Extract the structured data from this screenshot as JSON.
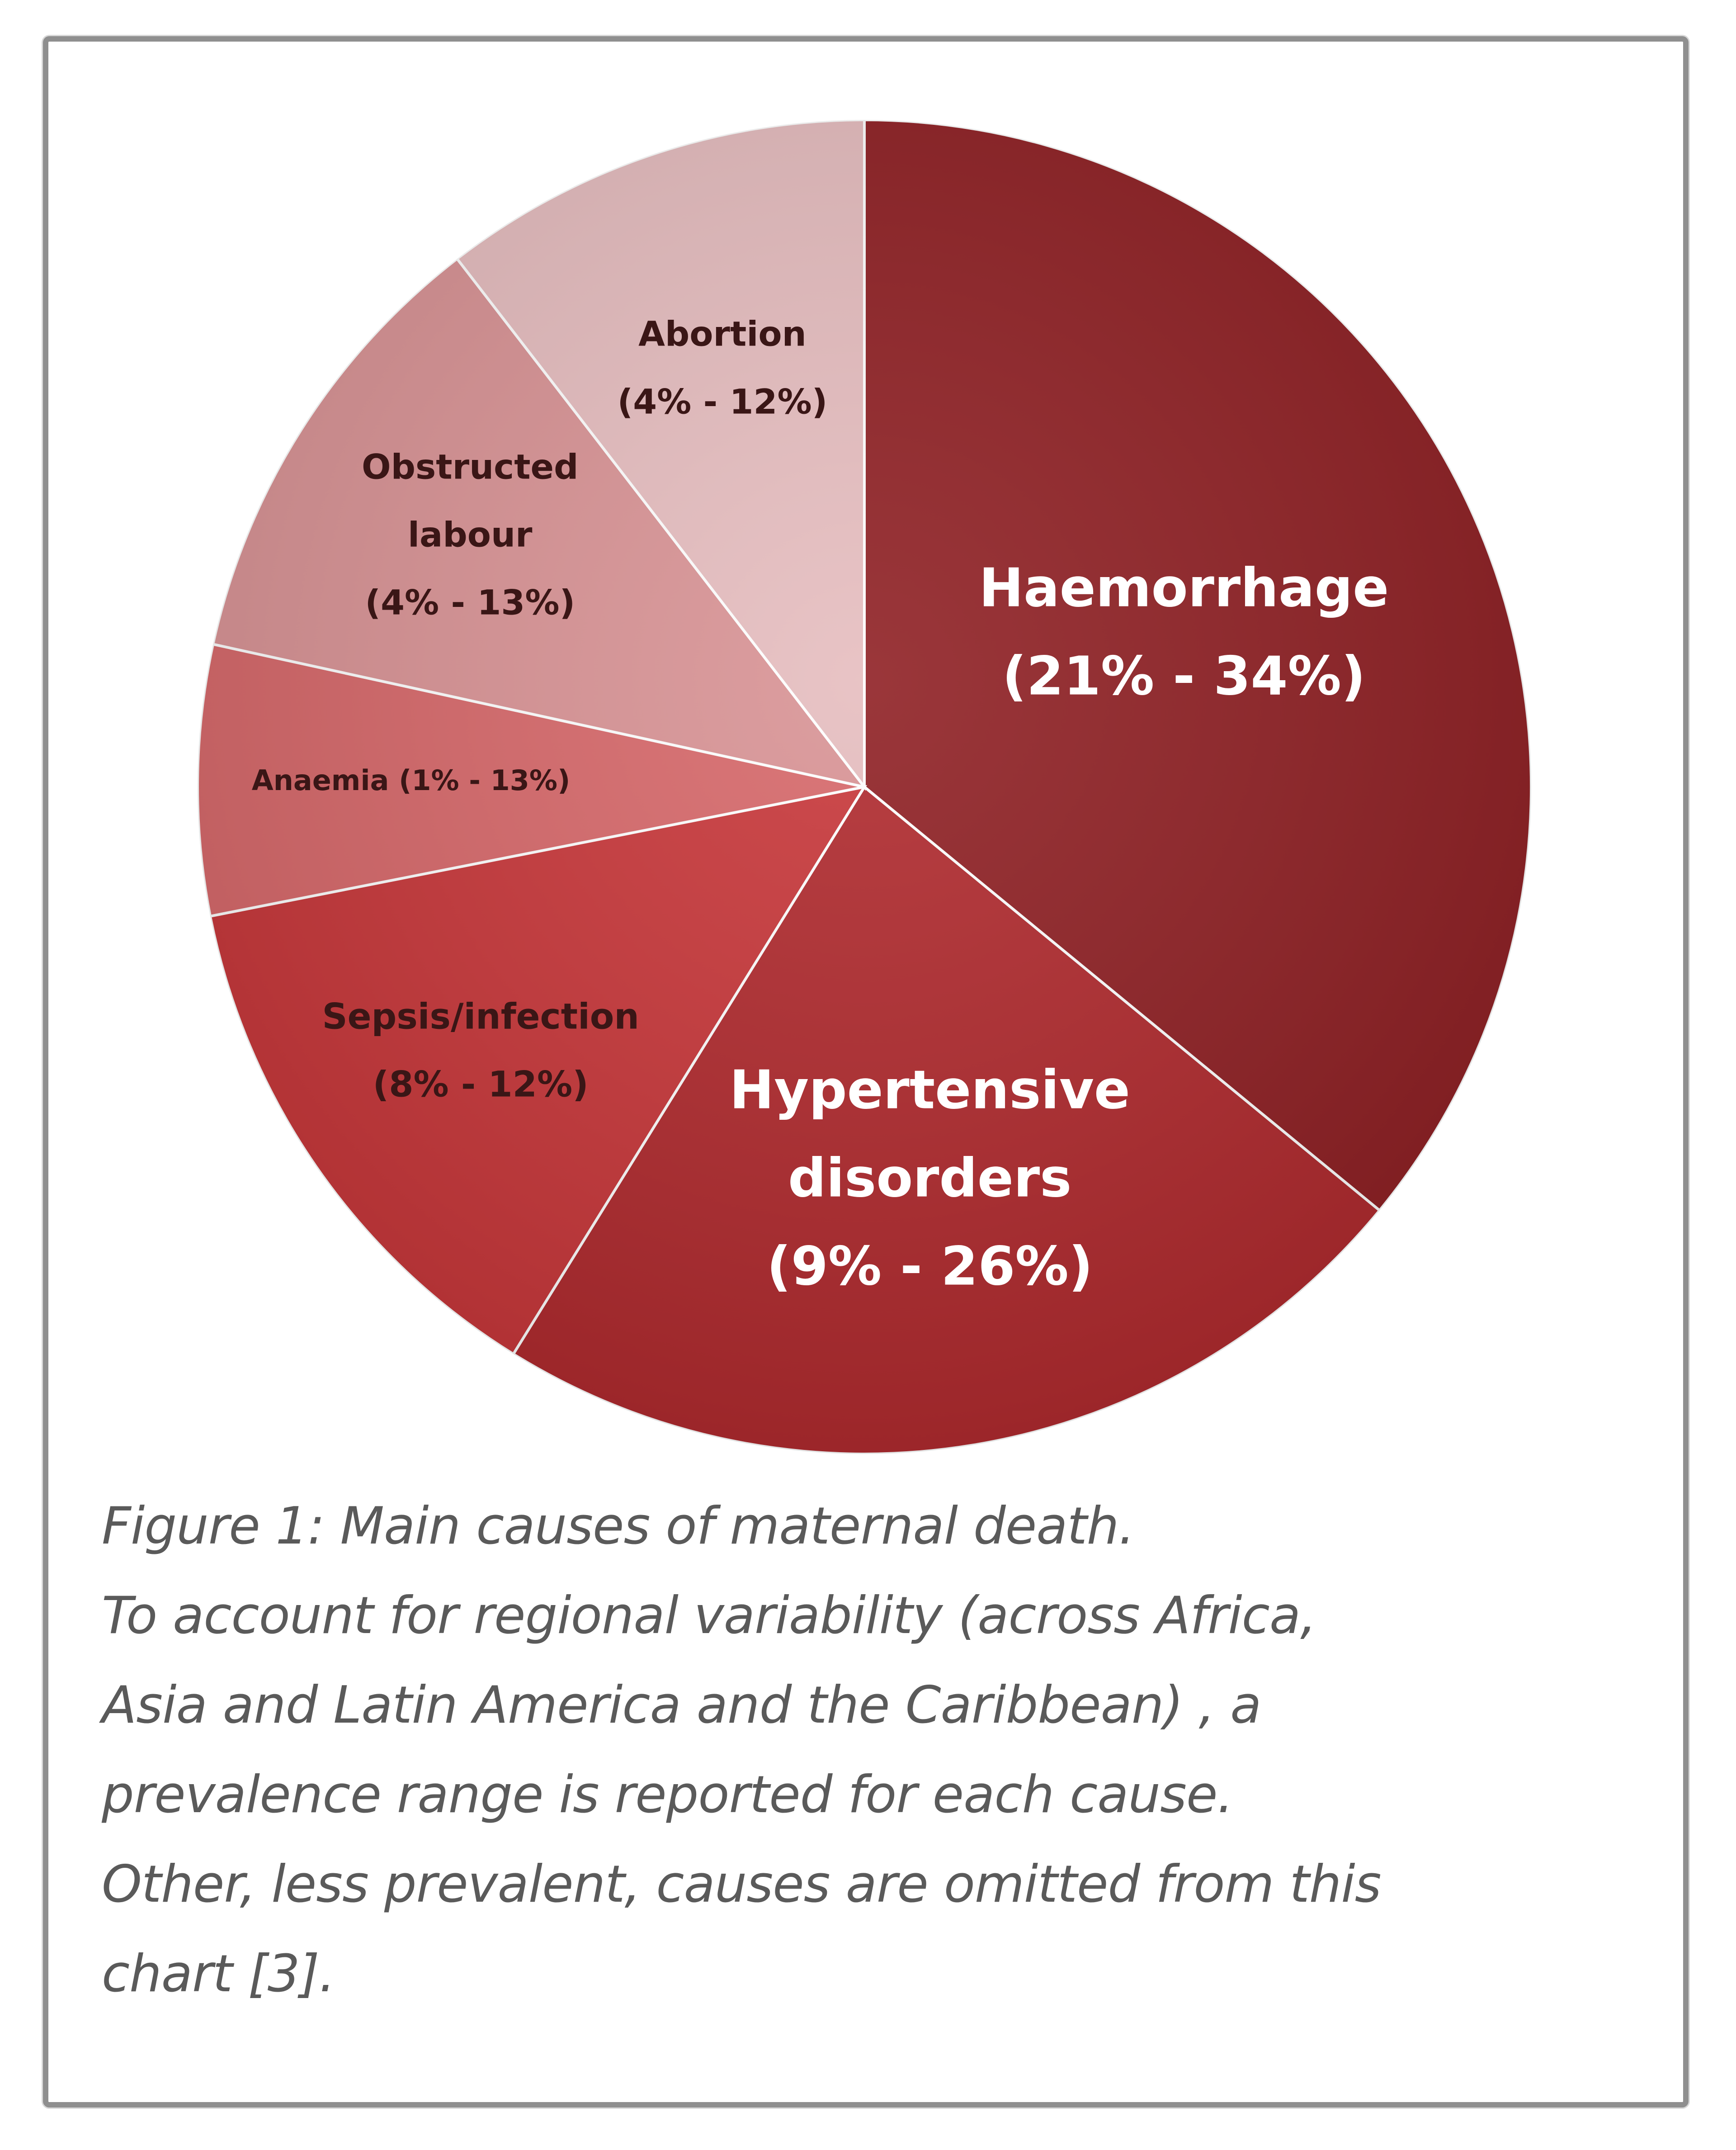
{
  "chart_data": {
    "type": "pie",
    "title": "",
    "slices": [
      {
        "label_lines": [
          "Haemorrhage",
          "(21% - 34%)"
        ],
        "range": [
          21,
          34
        ],
        "value": 27.5,
        "color": "#8f2024",
        "text_color": "#ffffff"
      },
      {
        "label_lines": [
          "Hypertensive",
          "disorders",
          "(9% - 26%)"
        ],
        "range": [
          9,
          26
        ],
        "value": 17.5,
        "color": "#b02a2e",
        "text_color": "#ffffff"
      },
      {
        "label_lines": [
          "Sepsis/infection",
          "(8% - 12%)"
        ],
        "range": [
          8,
          12
        ],
        "value": 10,
        "color": "#c8373a",
        "text_color": "#3a1616"
      },
      {
        "label_lines": [
          "Anaemia (1% - 13%)"
        ],
        "range": [
          1,
          13
        ],
        "value": 5,
        "color": "#d7686a",
        "text_color": "#3a1616"
      },
      {
        "label_lines": [
          "Obstructed",
          "labour",
          "(4% - 13%)"
        ],
        "range": [
          4,
          13
        ],
        "value": 8.5,
        "color": "#d99395",
        "text_color": "#3a1616"
      },
      {
        "label_lines": [
          "Abortion",
          "(4% - 12%)"
        ],
        "range": [
          4,
          12
        ],
        "value": 8,
        "color": "#e6bdbf",
        "text_color": "#3a1616"
      }
    ]
  },
  "caption": {
    "lines": [
      "Figure 1: Main causes of maternal death.",
      "To account for regional variability (across Africa,",
      "Asia and Latin America and the Caribbean) , a",
      "prevalence range is reported for each cause.",
      "Other, less prevalent, causes are omitted from this",
      "chart [3]."
    ]
  }
}
